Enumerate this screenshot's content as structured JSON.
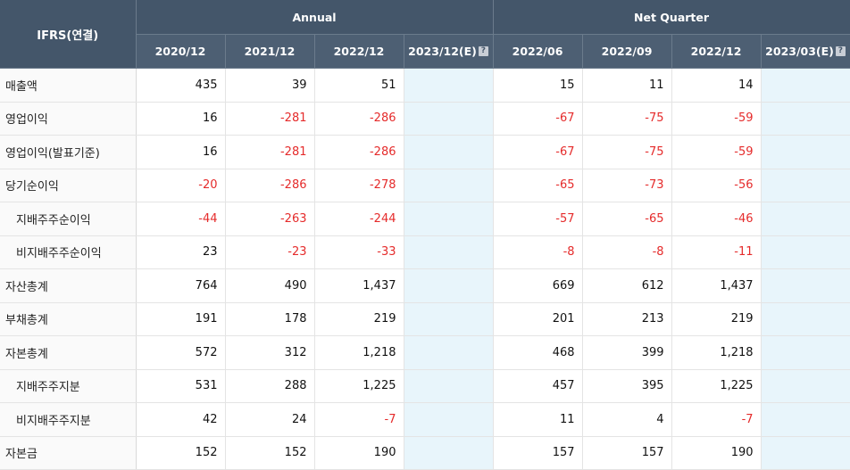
{
  "header": {
    "corner": "IFRS(연결)",
    "group_annual": "Annual",
    "group_quarter": "Net Quarter",
    "annual_cols": [
      "2020/12",
      "2021/12",
      "2022/12",
      "2023/12(E)"
    ],
    "quarter_cols": [
      "2022/06",
      "2022/09",
      "2022/12",
      "2023/03(E)"
    ],
    "help_icon": "?"
  },
  "rows": [
    {
      "label": "매출액",
      "sub": false,
      "annual": [
        "435",
        "39",
        "51",
        ""
      ],
      "quarter": [
        "15",
        "11",
        "14",
        ""
      ]
    },
    {
      "label": "영업이익",
      "sub": false,
      "annual": [
        "16",
        "-281",
        "-286",
        ""
      ],
      "quarter": [
        "-67",
        "-75",
        "-59",
        ""
      ]
    },
    {
      "label": "영업이익(발표기준)",
      "sub": false,
      "annual": [
        "16",
        "-281",
        "-286",
        ""
      ],
      "quarter": [
        "-67",
        "-75",
        "-59",
        ""
      ]
    },
    {
      "label": "당기순이익",
      "sub": false,
      "annual": [
        "-20",
        "-286",
        "-278",
        ""
      ],
      "quarter": [
        "-65",
        "-73",
        "-56",
        ""
      ]
    },
    {
      "label": "지배주주순이익",
      "sub": true,
      "annual": [
        "-44",
        "-263",
        "-244",
        ""
      ],
      "quarter": [
        "-57",
        "-65",
        "-46",
        ""
      ]
    },
    {
      "label": "비지배주주순이익",
      "sub": true,
      "annual": [
        "23",
        "-23",
        "-33",
        ""
      ],
      "quarter": [
        "-8",
        "-8",
        "-11",
        ""
      ]
    },
    {
      "label": "자산총계",
      "sub": false,
      "annual": [
        "764",
        "490",
        "1,437",
        ""
      ],
      "quarter": [
        "669",
        "612",
        "1,437",
        ""
      ]
    },
    {
      "label": "부채총계",
      "sub": false,
      "annual": [
        "191",
        "178",
        "219",
        ""
      ],
      "quarter": [
        "201",
        "213",
        "219",
        ""
      ]
    },
    {
      "label": "자본총계",
      "sub": false,
      "annual": [
        "572",
        "312",
        "1,218",
        ""
      ],
      "quarter": [
        "468",
        "399",
        "1,218",
        ""
      ]
    },
    {
      "label": "지배주주지분",
      "sub": true,
      "annual": [
        "531",
        "288",
        "1,225",
        ""
      ],
      "quarter": [
        "457",
        "395",
        "1,225",
        ""
      ]
    },
    {
      "label": "비지배주주지분",
      "sub": true,
      "annual": [
        "42",
        "24",
        "-7",
        ""
      ],
      "quarter": [
        "11",
        "4",
        "-7",
        ""
      ]
    },
    {
      "label": "자본금",
      "sub": false,
      "annual": [
        "152",
        "152",
        "190",
        ""
      ],
      "quarter": [
        "157",
        "157",
        "190",
        ""
      ]
    }
  ],
  "colors": {
    "header_bg": "#44566a",
    "estimate_bg": "#e8f5fb",
    "negative": "#e52b2b"
  }
}
